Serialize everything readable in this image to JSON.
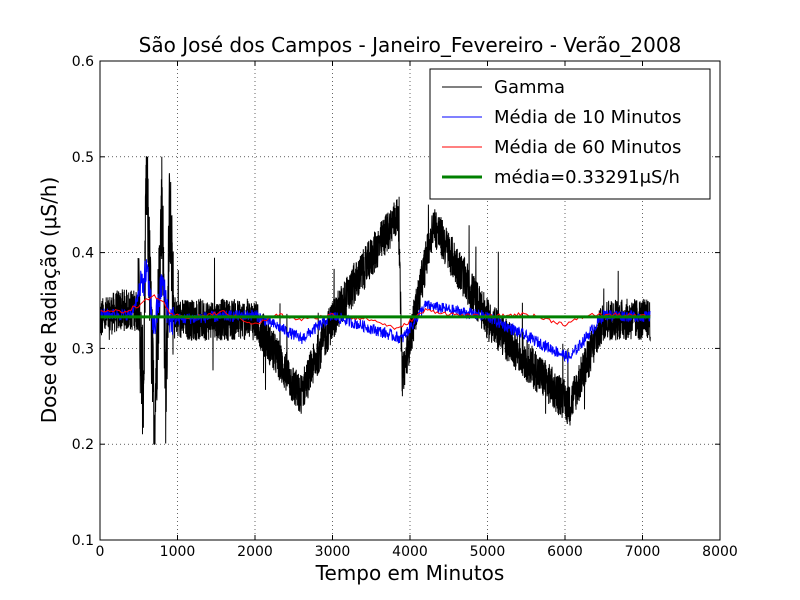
{
  "chart_data": {
    "type": "line",
    "title": "São José dos Campos - Janeiro_Fevereiro - Verão_2008",
    "xlabel": "Tempo em Minutos",
    "ylabel": "Dose de Radiação (μS/h)",
    "xlim": [
      0,
      8000
    ],
    "ylim": [
      0.1,
      0.6
    ],
    "x_ticks": [
      0,
      1000,
      2000,
      3000,
      4000,
      5000,
      6000,
      7000,
      8000
    ],
    "y_ticks": [
      0.1,
      0.2,
      0.3,
      0.4,
      0.5,
      0.6
    ],
    "grid": true,
    "legend_position": "top-right",
    "series": [
      {
        "name": "Gamma",
        "color": "#000000",
        "x_range": [
          0,
          7100
        ],
        "approx_points": [
          [
            0,
            0.33
          ],
          [
            250,
            0.34
          ],
          [
            500,
            0.34
          ],
          [
            560,
            0.25
          ],
          [
            600,
            0.48
          ],
          [
            700,
            0.22
          ],
          [
            800,
            0.46
          ],
          [
            850,
            0.25
          ],
          [
            900,
            0.45
          ],
          [
            950,
            0.33
          ],
          [
            1500,
            0.33
          ],
          [
            2000,
            0.33
          ],
          [
            2580,
            0.25
          ],
          [
            3000,
            0.33
          ],
          [
            3850,
            0.44
          ],
          [
            3900,
            0.27
          ],
          [
            4300,
            0.43
          ],
          [
            5000,
            0.33
          ],
          [
            6060,
            0.24
          ],
          [
            6500,
            0.33
          ],
          [
            7100,
            0.33
          ]
        ]
      },
      {
        "name": "Média de 10 Minutos",
        "color": "#0000ff",
        "x_range": [
          0,
          7100
        ],
        "approx_points": [
          [
            0,
            0.336
          ],
          [
            400,
            0.335
          ],
          [
            600,
            0.38
          ],
          [
            700,
            0.32
          ],
          [
            800,
            0.37
          ],
          [
            900,
            0.33
          ],
          [
            1500,
            0.333
          ],
          [
            2000,
            0.335
          ],
          [
            2600,
            0.31
          ],
          [
            3000,
            0.334
          ],
          [
            3900,
            0.31
          ],
          [
            4200,
            0.345
          ],
          [
            5000,
            0.333
          ],
          [
            6060,
            0.29
          ],
          [
            6500,
            0.335
          ],
          [
            7100,
            0.333
          ]
        ]
      },
      {
        "name": "Média de 60 Minutos",
        "color": "#ff0000",
        "x_range": [
          0,
          7100
        ],
        "approx_points": [
          [
            0,
            0.34
          ],
          [
            300,
            0.338
          ],
          [
            500,
            0.345
          ],
          [
            700,
            0.355
          ],
          [
            800,
            0.35
          ],
          [
            900,
            0.335
          ],
          [
            1200,
            0.332
          ],
          [
            1600,
            0.338
          ],
          [
            2000,
            0.325
          ],
          [
            2300,
            0.335
          ],
          [
            2600,
            0.33
          ],
          [
            3000,
            0.335
          ],
          [
            3500,
            0.33
          ],
          [
            3850,
            0.32
          ],
          [
            4200,
            0.34
          ],
          [
            4600,
            0.335
          ],
          [
            5000,
            0.333
          ],
          [
            5500,
            0.336
          ],
          [
            6000,
            0.325
          ],
          [
            6300,
            0.335
          ],
          [
            6700,
            0.335
          ],
          [
            7100,
            0.333
          ]
        ]
      },
      {
        "name": "média=0.33291μS/h",
        "color": "#008000",
        "x_range": [
          0,
          7100
        ],
        "constant_value": 0.33291
      }
    ]
  }
}
